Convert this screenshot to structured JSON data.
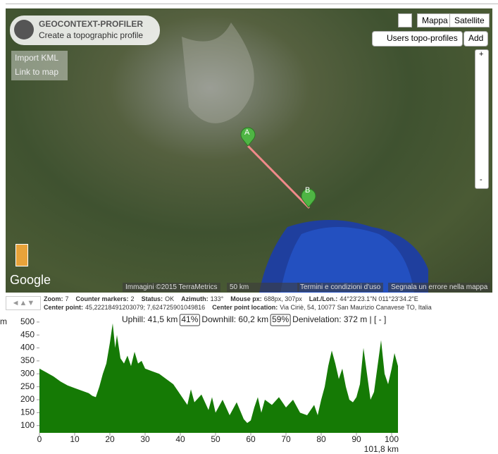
{
  "map": {
    "logo_title": "GEOCONTEXT-PROFILER",
    "logo_subtitle": "Create a topographic profile",
    "import_kml": "Import KML",
    "link_to_map": "Link to map",
    "map_button": "Mappa",
    "satellite_button": "Satellite",
    "users_profiles": "Users topo-profiles",
    "add": "Add",
    "zoom_in": "+",
    "zoom_out": "-",
    "marker_a": "A",
    "marker_b": "B",
    "google": "Google",
    "imagery": "Immagini ©2015 TerraMetrics",
    "scale": "50 km",
    "terms": "Termini e condizioni d'uso",
    "report": "Segnala un errore nella mappa"
  },
  "status": {
    "line1": [
      [
        "Zoom:",
        "7"
      ],
      [
        "Counter markers:",
        "2"
      ],
      [
        "Status:",
        "OK"
      ],
      [
        "Azimuth:",
        "133°"
      ],
      [
        "Mouse px:",
        "688px, 307px"
      ],
      [
        "Lat./Lon.:",
        "44°23'23.1\"N 011°23'34.2\"E"
      ]
    ],
    "line2": [
      [
        "Center point:",
        "45,22218491203079; 7,624725901049816"
      ],
      [
        "Center point location:",
        "Via Ciriè, 54, 10077 San Maurizio Canavese TO, Italia"
      ]
    ]
  },
  "profile": {
    "type": "area",
    "y_unit": "m",
    "distance_label": "101,8 km",
    "uphill": "Uphill: 41,5 km",
    "uphill_pct": "41%",
    "downhill": "Downhill: 60,2 km",
    "downhill_pct": "59%",
    "denivelation": "Denivelation: 372 m | [ - ]",
    "color": "#157a05",
    "xlim": [
      0,
      101.8
    ],
    "ylim": [
      72,
      524
    ],
    "xticks": [
      0,
      10,
      20,
      30,
      40,
      50,
      60,
      70,
      80,
      90,
      100
    ],
    "yticks": [
      100,
      150,
      200,
      250,
      300,
      350,
      400,
      450,
      500
    ],
    "x": [
      0,
      2,
      4,
      6,
      8,
      10,
      12,
      14,
      15,
      16,
      17,
      18,
      19,
      20,
      20.8,
      21.5,
      22,
      23,
      24,
      25,
      26,
      27,
      28,
      29,
      30,
      32,
      34,
      36,
      38,
      40,
      42,
      43,
      44,
      46,
      48,
      49,
      50,
      52,
      54,
      56,
      58,
      59,
      60,
      61,
      62,
      63,
      64,
      66,
      68,
      70,
      72,
      74,
      76,
      78,
      79,
      80,
      81,
      82,
      83,
      84,
      85,
      86,
      87,
      88,
      89,
      90,
      91,
      92,
      93,
      94,
      95,
      96,
      97,
      98,
      99,
      100,
      100.8,
      101.8
    ],
    "values": [
      320,
      305,
      290,
      270,
      255,
      245,
      235,
      225,
      215,
      210,
      250,
      300,
      340,
      420,
      495,
      400,
      450,
      360,
      340,
      370,
      330,
      385,
      340,
      350,
      320,
      310,
      300,
      280,
      260,
      220,
      180,
      240,
      190,
      220,
      160,
      210,
      150,
      200,
      140,
      190,
      125,
      110,
      120,
      170,
      210,
      150,
      200,
      180,
      210,
      170,
      200,
      150,
      140,
      180,
      140,
      200,
      250,
      330,
      390,
      340,
      280,
      320,
      250,
      200,
      190,
      210,
      260,
      400,
      300,
      200,
      230,
      330,
      430,
      300,
      260,
      320,
      380,
      330
    ]
  }
}
